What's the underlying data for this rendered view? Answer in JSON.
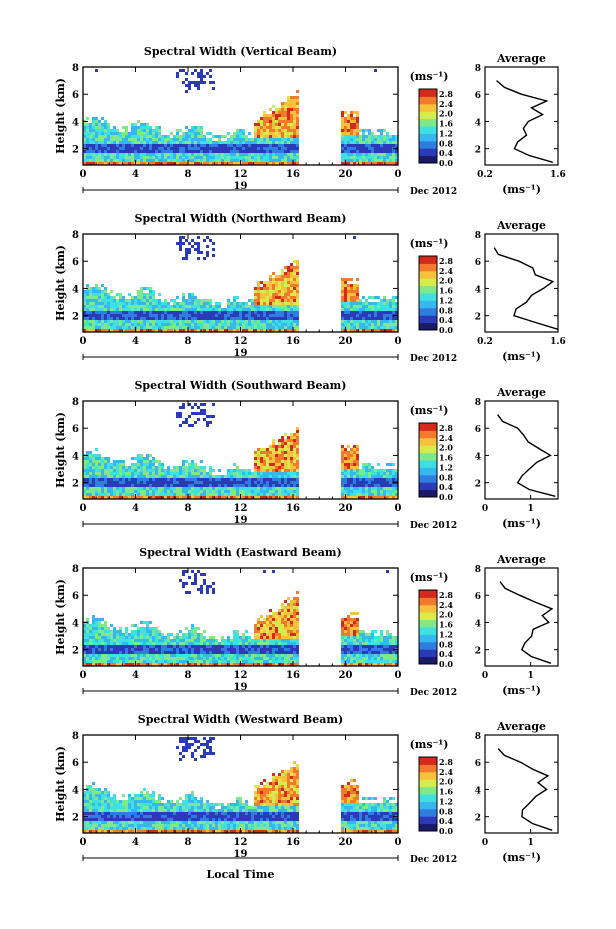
{
  "chart_data": {
    "type": "heatmap",
    "common": {
      "xticks": [
        "0",
        "4",
        "8",
        "12",
        "16",
        "20",
        "0"
      ],
      "x_values_hours": [
        0,
        4,
        8,
        12,
        16,
        20,
        24
      ],
      "xlim_hours": [
        0,
        24
      ],
      "day_marker": "19",
      "month_label": "Dec 2012",
      "xlabel_bottom": "Local Time",
      "ylabel": "Height (km)",
      "yticks": [
        "2",
        "4",
        "6",
        "8"
      ],
      "ylim_km": [
        0.8,
        8
      ],
      "unit_label": "(ms⁻¹)",
      "colorbar_ticks": [
        "0.0",
        "0.4",
        "0.8",
        "1.2",
        "1.6",
        "2.0",
        "2.4",
        "2.8"
      ],
      "colorbar_range": [
        0,
        3
      ],
      "colormap": [
        "#1a1a66",
        "#2b3ab8",
        "#2f7de0",
        "#35b7f0",
        "#3fe0e0",
        "#7ee88a",
        "#d6ec4a",
        "#f5c23a",
        "#f37a2c",
        "#d42a1e"
      ],
      "no_data_gap_hours": [
        16.3,
        19.5
      ],
      "average_title": "Average",
      "average_xlabel": "(ms⁻¹)",
      "average_yticks": [
        "2",
        "4",
        "6",
        "8"
      ]
    },
    "panels": [
      {
        "title": "Spectral Width (Vertical Beam)",
        "average_xticks": [
          "0.2",
          "1.6"
        ],
        "average_xlim": [
          0.2,
          1.6
        ],
        "average_profile": {
          "height_km": [
            1.0,
            1.5,
            2.0,
            2.5,
            3.0,
            3.5,
            4.0,
            4.5,
            5.0,
            5.5,
            6.0,
            6.5,
            7.0
          ],
          "width_ms": [
            1.55,
            1.1,
            0.75,
            0.8,
            0.95,
            0.9,
            1.0,
            1.35,
            1.1,
            1.4,
            0.85,
            0.55,
            0.4
          ]
        }
      },
      {
        "title": "Spectral Width (Northward Beam)",
        "average_xticks": [
          "0.2",
          "1.6"
        ],
        "average_xlim": [
          0.2,
          1.6
        ],
        "average_profile": {
          "height_km": [
            1.0,
            1.5,
            2.0,
            2.5,
            3.0,
            3.5,
            4.0,
            4.5,
            5.0,
            5.5,
            6.0,
            6.5,
            7.0
          ],
          "width_ms": [
            1.6,
            1.2,
            0.8,
            0.85,
            1.0,
            1.05,
            1.3,
            1.45,
            1.2,
            1.1,
            0.8,
            0.5,
            0.35
          ]
        }
      },
      {
        "title": "Spectral Width (Southward Beam)",
        "average_xticks": [
          "0",
          "1"
        ],
        "average_xlim": [
          0,
          1.6
        ],
        "average_profile": {
          "height_km": [
            1.0,
            1.5,
            2.0,
            2.5,
            3.0,
            3.5,
            4.0,
            4.5,
            5.0,
            5.5,
            6.0,
            6.5,
            7.0
          ],
          "width_ms": [
            1.5,
            1.0,
            0.75,
            0.8,
            0.95,
            1.1,
            1.4,
            1.2,
            1.0,
            0.9,
            0.7,
            0.4,
            0.3
          ]
        }
      },
      {
        "title": "Spectral Width (Eastward Beam)",
        "average_xticks": [
          "0",
          "1"
        ],
        "average_xlim": [
          0,
          1.6
        ],
        "average_profile": {
          "height_km": [
            1.0,
            1.5,
            2.0,
            2.5,
            3.0,
            3.5,
            4.0,
            4.5,
            5.0,
            5.5,
            6.0,
            6.5,
            7.0
          ],
          "width_ms": [
            1.45,
            1.0,
            0.8,
            0.85,
            1.0,
            1.1,
            1.45,
            1.3,
            1.5,
            1.1,
            0.8,
            0.45,
            0.3
          ]
        }
      },
      {
        "title": "Spectral Width (Westward Beam)",
        "average_xticks": [
          "0",
          "1"
        ],
        "average_xlim": [
          0,
          1.6
        ],
        "average_profile": {
          "height_km": [
            1.0,
            1.5,
            2.0,
            2.5,
            3.0,
            3.5,
            4.0,
            4.5,
            5.0,
            5.5,
            6.0,
            6.5,
            7.0
          ],
          "width_ms": [
            1.5,
            1.05,
            0.8,
            0.85,
            0.95,
            1.1,
            1.35,
            1.2,
            1.4,
            1.05,
            0.75,
            0.45,
            0.3
          ]
        }
      }
    ]
  }
}
